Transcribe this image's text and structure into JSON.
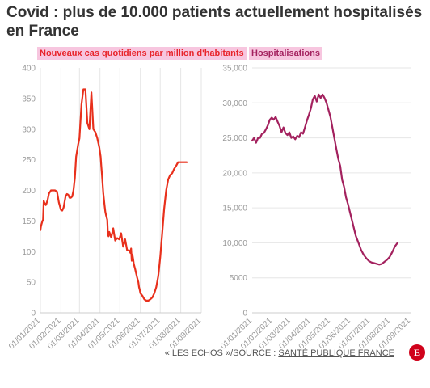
{
  "title": "Covid : plus de 10.000 patients actuellement hospitalisés en France",
  "footer": {
    "prefix": "« LES ECHOS »/SOURCE : ",
    "source": "SANTÉ PUBLIQUE FRANCE"
  },
  "logo": {
    "text": "E",
    "color": "#d0021b"
  },
  "chart_data": [
    {
      "type": "line",
      "title": "Nouveaux cas quotidiens par million d'habitants",
      "title_bg": "#f7c6df",
      "title_color": "#e8242a",
      "color": "#e8301c",
      "ylim": [
        0,
        400
      ],
      "yticks": [
        0,
        50,
        100,
        150,
        200,
        250,
        300,
        350,
        400
      ],
      "ytick_labels": [
        "0",
        "50",
        "100",
        "150",
        "200",
        "250",
        "300",
        "350",
        "400"
      ],
      "xticks": [
        "01/01/2021",
        "01/02/2021",
        "01/03/2021",
        "01/04/2021",
        "01/05/2021",
        "01/06/2021",
        "01/07/2021",
        "01/08/2021",
        "01/09/2021"
      ],
      "grid": "vertical",
      "series": [
        {
          "x": [
            "2021-01-01",
            "2021-01-02",
            "2021-01-04",
            "2021-01-05",
            "2021-01-06",
            "2021-01-07",
            "2021-01-09",
            "2021-01-10",
            "2021-01-12",
            "2021-01-14",
            "2021-01-17",
            "2021-01-20",
            "2021-01-23",
            "2021-01-26",
            "2021-01-29",
            "2021-02-01",
            "2021-02-03",
            "2021-02-05",
            "2021-02-08",
            "2021-02-10",
            "2021-02-12",
            "2021-02-14",
            "2021-02-16",
            "2021-02-18",
            "2021-02-20",
            "2021-02-22",
            "2021-02-24",
            "2021-02-27",
            "2021-03-01",
            "2021-03-04",
            "2021-03-07",
            "2021-03-10",
            "2021-03-13",
            "2021-03-16",
            "2021-03-19",
            "2021-03-22",
            "2021-03-25",
            "2021-03-28",
            "2021-03-31",
            "2021-04-02",
            "2021-04-03",
            "2021-04-04",
            "2021-04-05",
            "2021-04-06",
            "2021-04-08",
            "2021-04-09",
            "2021-04-10",
            "2021-04-12",
            "2021-04-13",
            "2021-04-14",
            "2021-04-15",
            "2021-04-18",
            "2021-04-21",
            "2021-04-24",
            "2021-04-27",
            "2021-04-30",
            "2021-05-03",
            "2021-05-06",
            "2021-05-09",
            "2021-05-12",
            "2021-05-15",
            "2021-05-16",
            "2021-05-17",
            "2021-05-18",
            "2021-05-19",
            "2021-05-20",
            "2021-05-21",
            "2021-05-22",
            "2021-05-24",
            "2021-05-27",
            "2021-05-29",
            "2021-05-30",
            "2021-05-31",
            "2021-06-01",
            "2021-06-04",
            "2021-06-07",
            "2021-06-10",
            "2021-06-13",
            "2021-06-16",
            "2021-06-19",
            "2021-06-22",
            "2021-06-25",
            "2021-06-28",
            "2021-07-01",
            "2021-07-04",
            "2021-07-07",
            "2021-07-10",
            "2021-07-13",
            "2021-07-16",
            "2021-07-19",
            "2021-07-22",
            "2021-07-25",
            "2021-07-28",
            "2021-07-31",
            "2021-08-03",
            "2021-08-06",
            "2021-08-09",
            "2021-08-10"
          ],
          "y": [
            135,
            142,
            150,
            152,
            183,
            180,
            176,
            178,
            185,
            195,
            200,
            200,
            200,
            198,
            180,
            168,
            167,
            172,
            190,
            194,
            193,
            188,
            188,
            190,
            200,
            220,
            255,
            275,
            285,
            340,
            365,
            365,
            310,
            300,
            360,
            300,
            295,
            285,
            270,
            255,
            240,
            225,
            210,
            195,
            175,
            165,
            160,
            152,
            128,
            125,
            132,
            123,
            138,
            118,
            122,
            120,
            130,
            108,
            120,
            102,
            102,
            100,
            98,
            105,
            85,
            95,
            88,
            80,
            72,
            58,
            50,
            42,
            38,
            32,
            28,
            22,
            20,
            20,
            22,
            25,
            32,
            42,
            60,
            90,
            130,
            170,
            200,
            218,
            225,
            228,
            235,
            240,
            246,
            246,
            246,
            246,
            246,
            246
          ]
        }
      ]
    },
    {
      "type": "line",
      "title": "Hospitalisations",
      "title_bg": "#f7c6df",
      "title_color": "#a3215e",
      "color": "#a3215e",
      "ylim": [
        0,
        35000
      ],
      "yticks": [
        0,
        5000,
        10000,
        15000,
        20000,
        25000,
        30000,
        35000
      ],
      "ytick_labels": [
        "0",
        "5000",
        "10,000",
        "15,000",
        "20,000",
        "25,000",
        "30,000",
        "35,000"
      ],
      "xticks": [
        "01/01/2021",
        "01/02/2021",
        "01/03/2021",
        "01/04/2021",
        "01/05/2021",
        "01/06/2021",
        "01/07/2021",
        "01/08/2021",
        "01/09/2021"
      ],
      "grid": "horizontal",
      "series": [
        {
          "x": [
            "2021-01-01",
            "2021-01-04",
            "2021-01-07",
            "2021-01-10",
            "2021-01-13",
            "2021-01-16",
            "2021-01-19",
            "2021-01-22",
            "2021-01-25",
            "2021-01-28",
            "2021-01-31",
            "2021-02-03",
            "2021-02-06",
            "2021-02-09",
            "2021-02-12",
            "2021-02-15",
            "2021-02-18",
            "2021-02-21",
            "2021-02-24",
            "2021-02-27",
            "2021-03-02",
            "2021-03-05",
            "2021-03-08",
            "2021-03-11",
            "2021-03-14",
            "2021-03-17",
            "2021-03-20",
            "2021-03-23",
            "2021-03-26",
            "2021-03-29",
            "2021-04-01",
            "2021-04-04",
            "2021-04-07",
            "2021-04-10",
            "2021-04-13",
            "2021-04-16",
            "2021-04-19",
            "2021-04-22",
            "2021-04-25",
            "2021-04-28",
            "2021-05-01",
            "2021-05-04",
            "2021-05-07",
            "2021-05-10",
            "2021-05-13",
            "2021-05-16",
            "2021-05-19",
            "2021-05-22",
            "2021-05-25",
            "2021-05-28",
            "2021-06-01",
            "2021-06-05",
            "2021-06-09",
            "2021-06-13",
            "2021-06-17",
            "2021-06-21",
            "2021-06-25",
            "2021-06-29",
            "2021-07-03",
            "2021-07-07",
            "2021-07-11",
            "2021-07-15",
            "2021-07-19",
            "2021-07-23",
            "2021-07-27",
            "2021-07-31",
            "2021-08-04",
            "2021-08-08",
            "2021-08-12"
          ],
          "y": [
            24600,
            25000,
            24300,
            25000,
            25000,
            25600,
            25700,
            26200,
            26800,
            27600,
            27900,
            27600,
            28000,
            27300,
            26700,
            25800,
            26500,
            25700,
            25400,
            25800,
            25000,
            25200,
            24800,
            25300,
            25100,
            25800,
            25600,
            26500,
            27500,
            28300,
            29200,
            30500,
            31000,
            30200,
            31200,
            30700,
            31200,
            30700,
            30000,
            29000,
            28000,
            26500,
            25000,
            23500,
            22000,
            21000,
            19000,
            18000,
            16500,
            15500,
            14000,
            12500,
            11000,
            10000,
            9000,
            8300,
            7800,
            7400,
            7200,
            7100,
            7000,
            6900,
            7000,
            7300,
            7600,
            8000,
            8700,
            9500,
            10000
          ]
        }
      ]
    }
  ]
}
